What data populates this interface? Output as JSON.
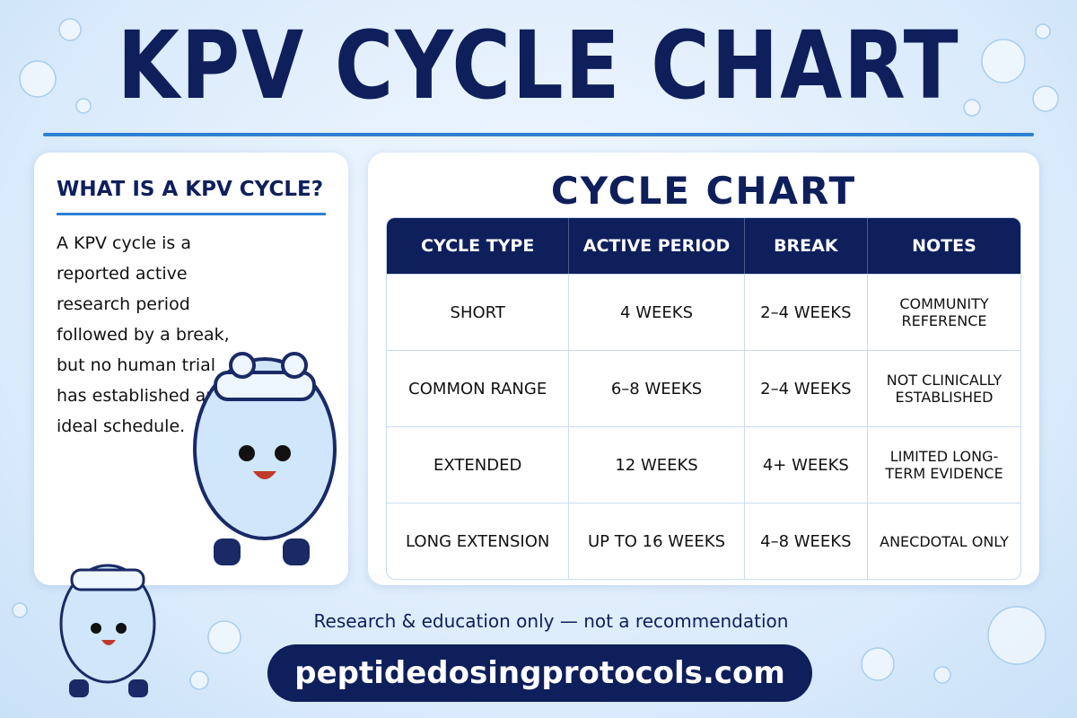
{
  "header": {
    "title": "KPV CYCLE CHART"
  },
  "sidebar": {
    "heading": "WHAT IS A KPV CYCLE?",
    "lines": [
      "A KPV cycle is a",
      "reported active",
      "research period",
      "followed by a break,",
      "but no human trial",
      "has established an",
      "ideal schedule."
    ]
  },
  "table": {
    "title": "CYCLE CHART",
    "headers": [
      "CYCLE TYPE",
      "ACTIVE PERIOD",
      "BREAK",
      "NOTES"
    ],
    "rows": [
      [
        "SHORT",
        "4 WEEKS",
        "2–4 WEEKS",
        "COMMUNITY REFERENCE"
      ],
      [
        "COMMON RANGE",
        "6–8 WEEKS",
        "2–4 WEEKS",
        "NOT CLINICALLY ESTABLISHED"
      ],
      [
        "EXTENDED",
        "12 WEEKS",
        "4+ WEEKS",
        "LIMITED LONG-TERM EVIDENCE"
      ],
      [
        "LONG EXTENSION",
        "UP TO 16 WEEKS",
        "4–8 WEEKS",
        "ANECDOTAL ONLY"
      ]
    ]
  },
  "footer": {
    "disclaimer": "Research & education only — not a recommendation",
    "url": "peptidedosingprotocols.com"
  }
}
